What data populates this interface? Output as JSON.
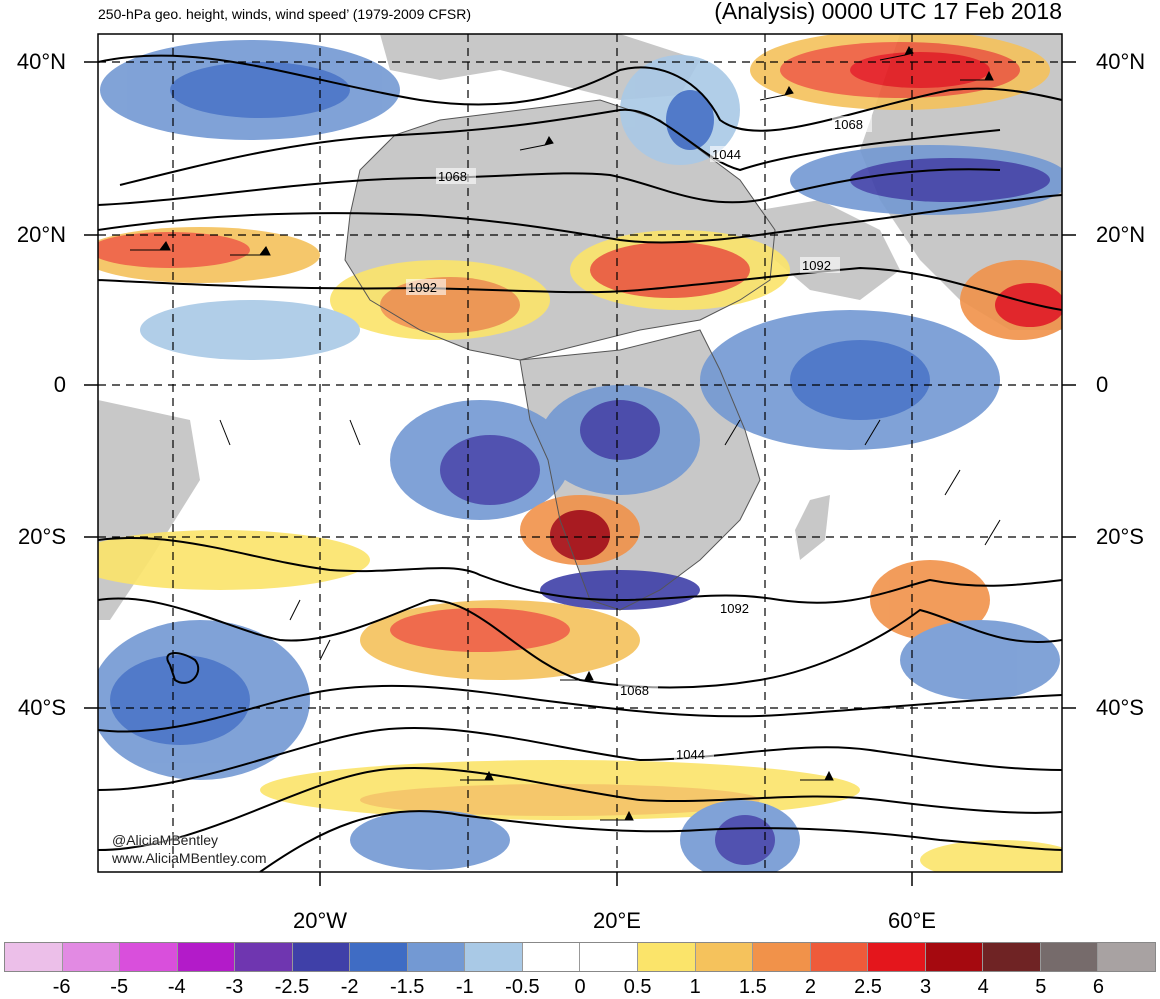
{
  "header": {
    "left_title": "250-hPa geo. height, winds, wind speed’ (1979-2009 CFSR)",
    "right_title": "(Analysis) 0000 UTC 17 Feb 2018"
  },
  "axes": {
    "lat_labels": [
      "40°N",
      "20°N",
      "0",
      "20°S",
      "40°S"
    ],
    "lon_labels": [
      "20°W",
      "20°E",
      "60°E"
    ]
  },
  "contour_labels": [
    "1068",
    "1044",
    "1068",
    "1092",
    "1092",
    "1092",
    "1068",
    "1044"
  ],
  "credits": [
    "@AliciaMBentley",
    "www.AliciaMBentley.com"
  ],
  "colorbar": {
    "tick_labels": [
      "-6",
      "-5",
      "-4",
      "-3",
      "-2.5",
      "-2",
      "-1.5",
      "-1",
      "-0.5",
      "0",
      "0.5",
      "1",
      "1.5",
      "2",
      "2.5",
      "3",
      "4",
      "5",
      "6"
    ],
    "colors": [
      "#ecbfe9",
      "#e28ae3",
      "#d94fdc",
      "#b31bc9",
      "#6f36b0",
      "#3f40a8",
      "#3f6cc4",
      "#7399d3",
      "#a9c9e6",
      "#ffffff",
      "#ffffff",
      "#fbe46a",
      "#f5c25c",
      "#f1924a",
      "#ee5b3a",
      "#e4161c",
      "#a5090f",
      "#6f2324",
      "#766b6b",
      "#a8a2a2"
    ]
  },
  "colors": {
    "land": "#c8c8c8",
    "ocean": "#ffffff",
    "contour": "#000000",
    "coastline": "#555555",
    "grid": "#000000"
  }
}
